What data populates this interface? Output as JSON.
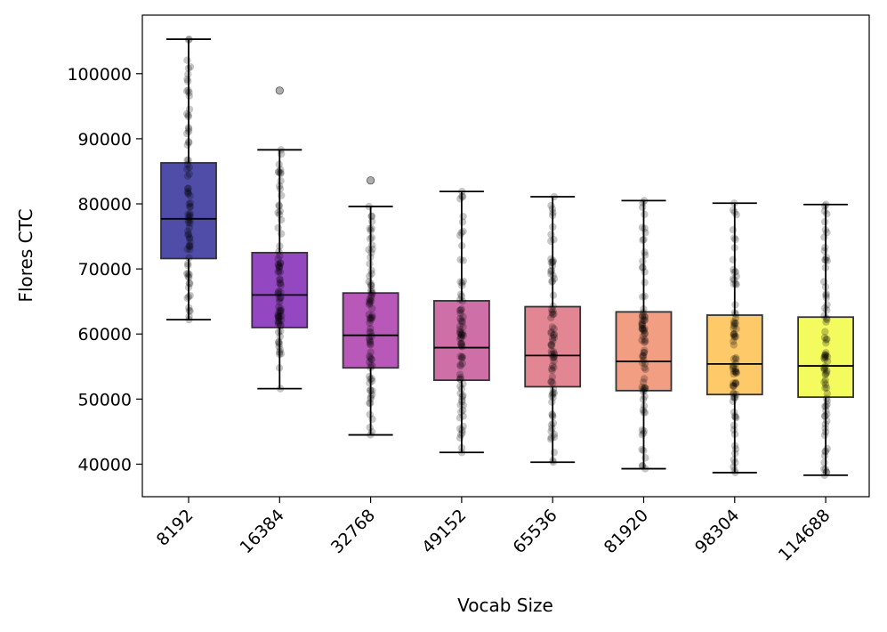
{
  "chart_data": {
    "type": "box",
    "title": "",
    "xlabel": "Vocab Size",
    "ylabel": "Flores CTC",
    "ylim": [
      35000,
      109000
    ],
    "yticks": [
      40000,
      50000,
      60000,
      70000,
      80000,
      90000,
      100000
    ],
    "ytick_labels": [
      "40000",
      "50000",
      "60000",
      "70000",
      "80000",
      "90000",
      "100000"
    ],
    "grid": false,
    "categories": [
      "8192",
      "16384",
      "32768",
      "49152",
      "65536",
      "81920",
      "98304",
      "114688"
    ],
    "box_colors": [
      "#0d0887",
      "#6a00a8",
      "#9c179e",
      "#bd3786",
      "#d8576b",
      "#ed7953",
      "#fdb42f",
      "#f0f921"
    ],
    "boxes": [
      {
        "category": "8192",
        "whisker_low": 62200,
        "q1": 71600,
        "median": 77700,
        "q3": 86300,
        "whisker_high": 105300,
        "outliers": []
      },
      {
        "category": "16384",
        "whisker_low": 51600,
        "q1": 61000,
        "median": 66000,
        "q3": 72500,
        "whisker_high": 88300,
        "outliers": [
          97400
        ]
      },
      {
        "category": "32768",
        "whisker_low": 44500,
        "q1": 54800,
        "median": 59800,
        "q3": 66300,
        "whisker_high": 79600,
        "outliers": [
          83600
        ]
      },
      {
        "category": "49152",
        "whisker_low": 41800,
        "q1": 52900,
        "median": 57900,
        "q3": 65100,
        "whisker_high": 81900,
        "outliers": []
      },
      {
        "category": "65536",
        "whisker_low": 40300,
        "q1": 51900,
        "median": 56700,
        "q3": 64200,
        "whisker_high": 81100,
        "outliers": []
      },
      {
        "category": "81920",
        "whisker_low": 39300,
        "q1": 51300,
        "median": 55800,
        "q3": 63400,
        "whisker_high": 80500,
        "outliers": []
      },
      {
        "category": "98304",
        "whisker_low": 38700,
        "q1": 50700,
        "median": 55400,
        "q3": 62900,
        "whisker_high": 80100,
        "outliers": []
      },
      {
        "category": "114688",
        "whisker_low": 38300,
        "q1": 50300,
        "median": 55100,
        "q3": 62600,
        "whisker_high": 79900,
        "outliers": []
      }
    ],
    "points_per_box": 80,
    "point_color": "#000000"
  }
}
